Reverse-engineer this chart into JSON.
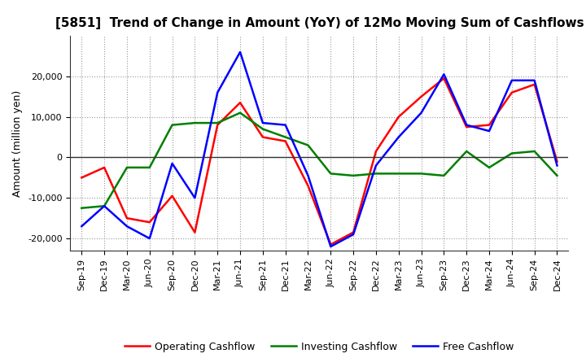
{
  "title": "[5851]  Trend of Change in Amount (YoY) of 12Mo Moving Sum of Cashflows",
  "ylabel": "Amount (million yen)",
  "x_labels": [
    "Sep-19",
    "Dec-19",
    "Mar-20",
    "Jun-20",
    "Sep-20",
    "Dec-20",
    "Mar-21",
    "Jun-21",
    "Sep-21",
    "Dec-21",
    "Mar-22",
    "Jun-22",
    "Sep-22",
    "Dec-22",
    "Mar-23",
    "Jun-23",
    "Sep-23",
    "Dec-23",
    "Mar-24",
    "Jun-24",
    "Sep-24",
    "Dec-24"
  ],
  "operating": [
    -5000,
    -2500,
    -15000,
    -16000,
    -9500,
    -18500,
    8000,
    13500,
    5000,
    4000,
    -7000,
    -21500,
    -18500,
    1500,
    10000,
    15000,
    19500,
    7500,
    8000,
    16000,
    18000,
    -1000
  ],
  "investing": [
    -12500,
    -12000,
    -2500,
    -2500,
    8000,
    8500,
    8500,
    11000,
    7000,
    5000,
    3000,
    -4000,
    -4500,
    -4000,
    -4000,
    -4000,
    -4500,
    1500,
    -2500,
    1000,
    1500,
    -4500
  ],
  "free": [
    -17000,
    -12000,
    -17000,
    -20000,
    -1500,
    -10000,
    16000,
    26000,
    8500,
    8000,
    -4500,
    -22000,
    -19000,
    -2000,
    5000,
    11000,
    20500,
    8000,
    6500,
    19000,
    19000,
    -2000
  ],
  "ylim": [
    -23000,
    30000
  ],
  "yticks": [
    -20000,
    -10000,
    0,
    10000,
    20000
  ],
  "colors": {
    "operating": "#ff0000",
    "investing": "#008000",
    "free": "#0000ff"
  },
  "legend_labels": [
    "Operating Cashflow",
    "Investing Cashflow",
    "Free Cashflow"
  ],
  "bg_color": "#ffffff",
  "grid_color": "#999999",
  "linewidth": 1.8,
  "title_fontsize": 11,
  "axis_fontsize": 9,
  "tick_fontsize": 8
}
